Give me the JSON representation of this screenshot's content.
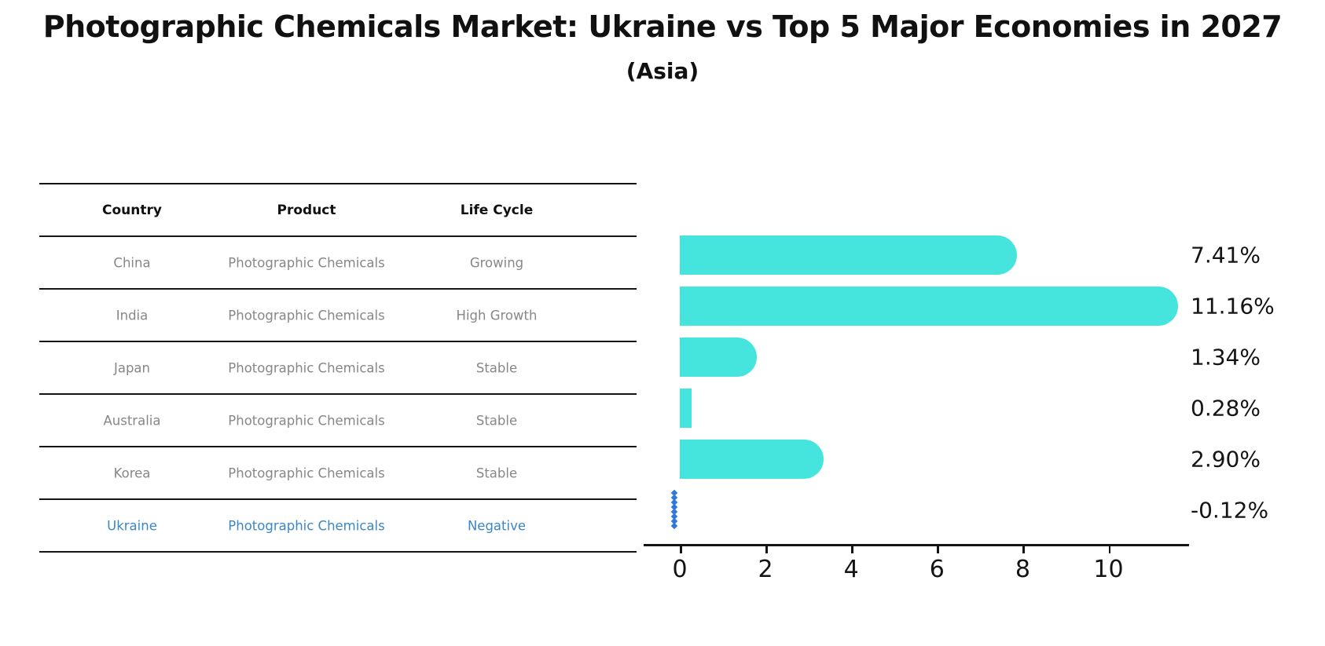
{
  "header": {
    "title": "Photographic Chemicals Market: Ukraine vs Top 5 Major Economies in 2027",
    "subtitle": "(Asia)"
  },
  "table": {
    "columns": [
      "Country",
      "Product",
      "Life Cycle"
    ],
    "rows": [
      {
        "country": "China",
        "product": "Photographic Chemicals",
        "life_cycle": "Growing",
        "highlighted": false
      },
      {
        "country": "India",
        "product": "Photographic Chemicals",
        "life_cycle": "High Growth",
        "highlighted": false
      },
      {
        "country": "Japan",
        "product": "Photographic Chemicals",
        "life_cycle": "Stable",
        "highlighted": false
      },
      {
        "country": "Australia",
        "product": "Photographic Chemicals",
        "life_cycle": "Stable",
        "highlighted": false
      },
      {
        "country": "Korea",
        "product": "Photographic Chemicals",
        "life_cycle": "Stable",
        "highlighted": false
      },
      {
        "country": "Ukraine",
        "product": "Photographic Chemicals",
        "life_cycle": "Negative",
        "highlighted": true
      }
    ]
  },
  "chart_data": {
    "type": "bar",
    "orientation": "horizontal",
    "title": "Photographic Chemicals Market: Ukraine vs Top 5 Major Economies in 2027 (Asia)",
    "categories": [
      "China",
      "India",
      "Japan",
      "Australia",
      "Korea",
      "Ukraine"
    ],
    "values": [
      7.41,
      11.16,
      1.34,
      0.28,
      2.9,
      -0.12
    ],
    "value_labels": [
      "7.41%",
      "11.16%",
      "1.34%",
      "0.28%",
      "2.90%",
      "-0.12%"
    ],
    "x_ticks": [
      0,
      2,
      4,
      6,
      8,
      10
    ],
    "xlim": [
      -0.85,
      11.9
    ],
    "grid": false,
    "legend": "none",
    "bar_color": "#45e5de",
    "negative_marker_color": "#2e79dc",
    "highlight_text_color": "#3c87c7",
    "axis_color": "#141414"
  }
}
